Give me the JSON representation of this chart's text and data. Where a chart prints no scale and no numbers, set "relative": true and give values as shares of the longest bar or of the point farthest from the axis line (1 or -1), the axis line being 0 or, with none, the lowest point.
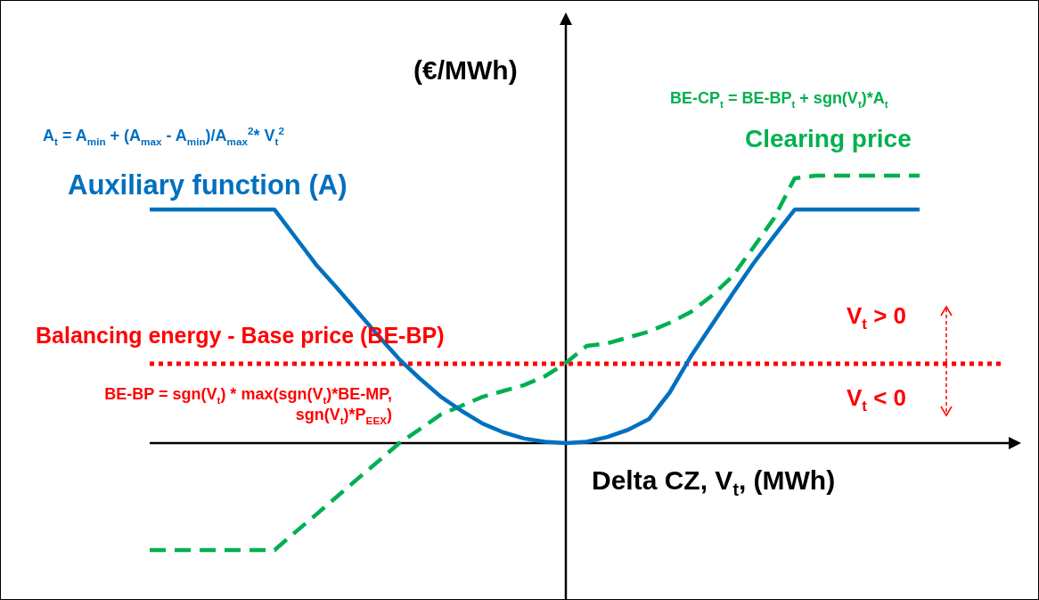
{
  "chart_data": {
    "type": "line",
    "relative": true,
    "ylabel": "(€/MWh)",
    "xlabel": "Delta CZ, V$_{t}$, (MWh)",
    "categories": [
      null,
      null,
      null,
      null,
      null,
      null,
      null,
      null,
      null,
      null,
      null,
      null,
      null,
      null,
      null,
      null,
      null,
      null,
      null,
      null,
      null,
      null,
      null,
      null,
      null,
      null,
      null,
      null,
      null,
      null,
      null,
      null,
      null,
      null,
      null,
      null,
      null,
      null,
      null,
      null,
      null
    ],
    "series": [
      {
        "name": "Auxiliary function (A)",
        "color": "#0070c0",
        "line_style": "solid",
        "values": [
          0.873,
          0.873,
          0.873,
          0.873,
          0.873,
          0.873,
          0.873,
          0.77,
          0.667,
          0.58,
          0.49,
          0.4,
          0.313,
          0.24,
          0.173,
          0.12,
          0.073,
          0.04,
          0.017,
          0.005,
          0,
          0.005,
          0.023,
          0.05,
          0.09,
          0.19,
          0.323,
          0.44,
          0.557,
          0.67,
          0.773,
          0.873,
          0.873,
          0.873,
          0.873,
          0.873,
          0.873,
          0.873,
          null,
          null,
          null
        ]
      },
      {
        "name": "Clearing price",
        "color": "#00b050",
        "line_style": "dashed",
        "values": [
          -0.4,
          -0.4,
          -0.4,
          -0.4,
          -0.4,
          -0.4,
          -0.4,
          -0.333,
          -0.267,
          -0.2,
          -0.133,
          -0.067,
          0,
          0.053,
          0.107,
          0.14,
          0.173,
          0.195,
          0.217,
          0.25,
          0.3,
          0.363,
          0.373,
          0.395,
          0.417,
          0.45,
          0.49,
          0.55,
          0.623,
          0.73,
          0.84,
          0.99,
          1,
          1,
          1,
          1,
          1,
          1,
          null,
          null,
          null
        ]
      }
    ],
    "ref_lines": [
      {
        "axis": "y",
        "value": 0.297,
        "label": "Balancing energy - Base price (BE-BP)",
        "color": "#ff0000",
        "line_style": "dotted"
      }
    ],
    "annotations": [
      "A$_{t}$ = A$_{min}$ + (A$_{max}$ - A$_{min}$)/A$_{max}$$^{2}$* V$_{t}$$^{2}$",
      "BE-CP$_{t}$ = BE-BP$_{t}$ + sgn(V$_{t}$)*A$_{t}$",
      "BE-BP = sgn(V$_{t}$) * max(sgn(V$_{t}$)*BE-MP, sgn(V$_{t}$)*P$_{EEX}$)",
      "V$_{t}$ > 0",
      "V$_{t}$ < 0"
    ],
    "legend": false,
    "marker": "none"
  }
}
